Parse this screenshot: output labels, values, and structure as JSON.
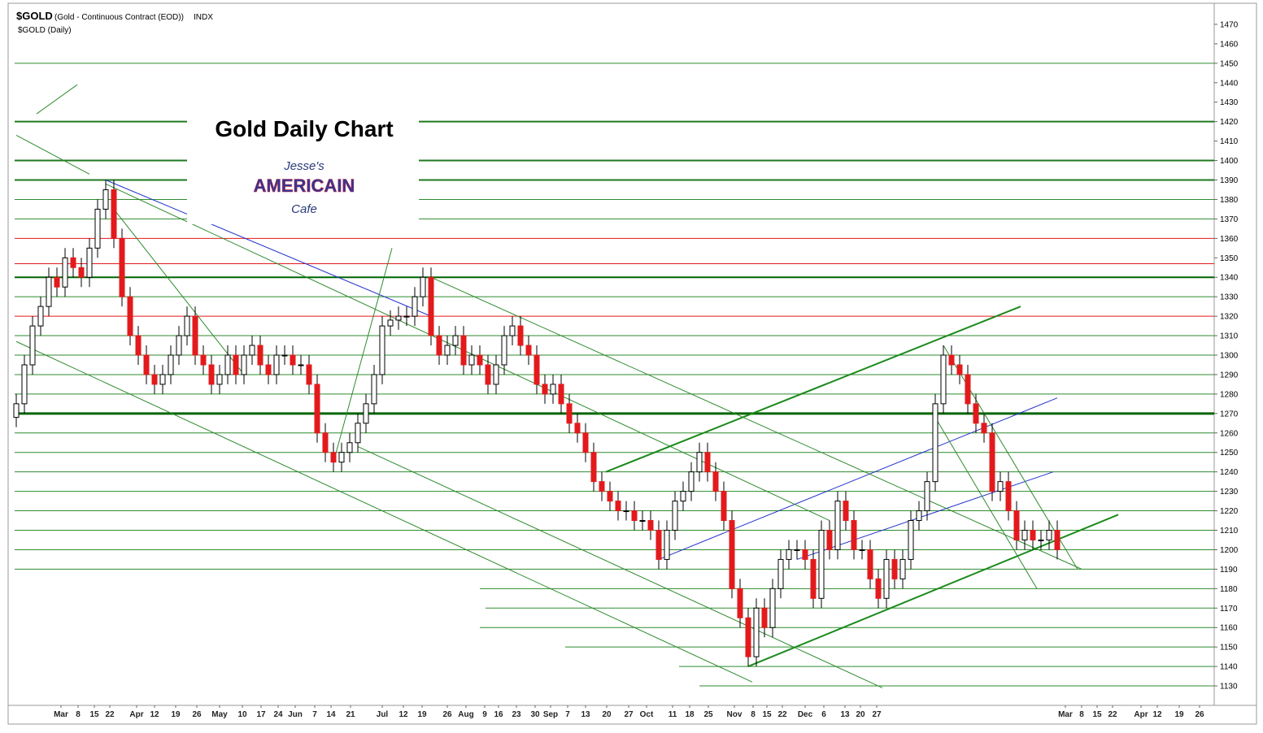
{
  "chart_data": {
    "type": "candlestick",
    "symbol": "$GOLD",
    "description": "(Gold - Continuous Contract (EOD))",
    "exchange": "INDX",
    "legend_label": "$GOLD (Daily)",
    "title": "Gold Daily Chart",
    "logo": [
      "Jesse's",
      "AMERICAIN",
      "Cafe"
    ],
    "up_color": "#ffffff",
    "down_color": "#e31a1c",
    "wick_color": "#000000",
    "xlim": [
      -0.2,
      147.3
    ],
    "ylim": [
      1120,
      1480
    ],
    "yticks": [
      1130,
      1140,
      1150,
      1160,
      1170,
      1180,
      1190,
      1200,
      1210,
      1220,
      1230,
      1240,
      1250,
      1260,
      1270,
      1280,
      1290,
      1300,
      1310,
      1320,
      1330,
      1340,
      1350,
      1360,
      1370,
      1380,
      1390,
      1400,
      1410,
      1420,
      1430,
      1440,
      1450,
      1460,
      1470
    ],
    "xticks": [
      {
        "value": 5.5,
        "label": "Mar"
      },
      {
        "value": 7.6,
        "label": "8"
      },
      {
        "value": 9.6,
        "label": "15"
      },
      {
        "value": 11.5,
        "label": "22"
      },
      {
        "value": 14.8,
        "label": "Apr"
      },
      {
        "value": 17,
        "label": "12"
      },
      {
        "value": 19.6,
        "label": "19"
      },
      {
        "value": 22.2,
        "label": "26"
      },
      {
        "value": 25,
        "label": "May"
      },
      {
        "value": 27.8,
        "label": "10"
      },
      {
        "value": 30.1,
        "label": "17"
      },
      {
        "value": 32.2,
        "label": "24"
      },
      {
        "value": 34.3,
        "label": "Jun"
      },
      {
        "value": 36.7,
        "label": "7"
      },
      {
        "value": 38.7,
        "label": "14"
      },
      {
        "value": 41.1,
        "label": "21"
      },
      {
        "value": 45,
        "label": "Jul"
      },
      {
        "value": 47.6,
        "label": "12"
      },
      {
        "value": 49.9,
        "label": "19"
      },
      {
        "value": 53,
        "label": "26"
      },
      {
        "value": 55.3,
        "label": "Aug"
      },
      {
        "value": 57.6,
        "label": "9"
      },
      {
        "value": 59.3,
        "label": "16"
      },
      {
        "value": 61.5,
        "label": "23"
      },
      {
        "value": 63.8,
        "label": "30"
      },
      {
        "value": 65.7,
        "label": "Sep"
      },
      {
        "value": 67.8,
        "label": "7"
      },
      {
        "value": 70,
        "label": "13"
      },
      {
        "value": 72.6,
        "label": "20"
      },
      {
        "value": 75.3,
        "label": "27"
      },
      {
        "value": 77.5,
        "label": "Oct"
      },
      {
        "value": 80.7,
        "label": "11"
      },
      {
        "value": 82.8,
        "label": "18"
      },
      {
        "value": 85.1,
        "label": "25"
      },
      {
        "value": 88.3,
        "label": "Nov"
      },
      {
        "value": 90.6,
        "label": "8"
      },
      {
        "value": 92.3,
        "label": "15"
      },
      {
        "value": 94.2,
        "label": "22"
      },
      {
        "value": 97,
        "label": "Dec"
      },
      {
        "value": 99.3,
        "label": "6"
      },
      {
        "value": 101.9,
        "label": "13"
      },
      {
        "value": 103.8,
        "label": "20"
      },
      {
        "value": 105.8,
        "label": "27"
      },
      {
        "value": 129,
        "label": "Mar"
      },
      {
        "value": 131,
        "label": "8"
      },
      {
        "value": 132.9,
        "label": "15"
      },
      {
        "value": 134.8,
        "label": "22"
      },
      {
        "value": 138.3,
        "label": "Apr"
      },
      {
        "value": 140.3,
        "label": "12"
      },
      {
        "value": 143,
        "label": "19"
      },
      {
        "value": 145.5,
        "label": "26"
      }
    ],
    "x": [
      0,
      1,
      2,
      3,
      4,
      5,
      6,
      7,
      8,
      9,
      10,
      11,
      12,
      13,
      14,
      15,
      16,
      17,
      18,
      19,
      20,
      21,
      22,
      23,
      24,
      25,
      26,
      27,
      28,
      29,
      30,
      31,
      32,
      33,
      34,
      35,
      36,
      37,
      38,
      39,
      40,
      41,
      42,
      43,
      44,
      45,
      46,
      47,
      48,
      49,
      50,
      51,
      52,
      53,
      54,
      55,
      56,
      57,
      58,
      59,
      60,
      61,
      62,
      63,
      64,
      65,
      66,
      67,
      68,
      69,
      70,
      71,
      72,
      73,
      74,
      75,
      76,
      77,
      78,
      79,
      80,
      81,
      82,
      83,
      84,
      85,
      86,
      87,
      88,
      89,
      90,
      91,
      92,
      93,
      94,
      95,
      96,
      97,
      98,
      99,
      100,
      101,
      102,
      103,
      104,
      105,
      106,
      107,
      108,
      109,
      110,
      111,
      112,
      113,
      114,
      115,
      116,
      117,
      118,
      119,
      120,
      121,
      122,
      123,
      124,
      125,
      126,
      127,
      128
    ],
    "open": [
      1268,
      1275,
      1295,
      1315,
      1325,
      1340,
      1335,
      1350,
      1345,
      1340,
      1355,
      1375,
      1385,
      1360,
      1330,
      1310,
      1300,
      1290,
      1285,
      1290,
      1300,
      1310,
      1320,
      1300,
      1295,
      1285,
      1290,
      1300,
      1290,
      1300,
      1305,
      1295,
      1290,
      1300,
      1300,
      1295,
      1295,
      1285,
      1260,
      1250,
      1245,
      1250,
      1255,
      1265,
      1275,
      1290,
      1315,
      1318,
      1320,
      1320,
      1330,
      1340,
      1310,
      1300,
      1305,
      1310,
      1295,
      1300,
      1295,
      1285,
      1295,
      1310,
      1315,
      1305,
      1300,
      1285,
      1280,
      1285,
      1275,
      1265,
      1260,
      1250,
      1235,
      1230,
      1225,
      1220,
      1220,
      1215,
      1215,
      1210,
      1195,
      1210,
      1225,
      1230,
      1240,
      1250,
      1240,
      1230,
      1215,
      1180,
      1165,
      1145,
      1170,
      1160,
      1180,
      1195,
      1200,
      1200,
      1195,
      1175,
      1210,
      1200,
      1225,
      1215,
      1200,
      1200,
      1185,
      1175,
      1195,
      1185,
      1195,
      1215,
      1220,
      1235,
      1275,
      1300,
      1295,
      1290,
      1275,
      1265,
      1260,
      1230,
      1235,
      1220,
      1205,
      1210,
      1205,
      1205,
      1210
    ],
    "high": [
      1280,
      1300,
      1320,
      1330,
      1345,
      1345,
      1355,
      1355,
      1350,
      1360,
      1380,
      1390,
      1390,
      1365,
      1335,
      1315,
      1305,
      1295,
      1295,
      1305,
      1315,
      1325,
      1325,
      1305,
      1300,
      1295,
      1305,
      1305,
      1305,
      1310,
      1310,
      1300,
      1305,
      1305,
      1305,
      1300,
      1300,
      1290,
      1265,
      1255,
      1255,
      1260,
      1270,
      1280,
      1295,
      1320,
      1323,
      1325,
      1325,
      1335,
      1345,
      1345,
      1315,
      1310,
      1315,
      1315,
      1305,
      1305,
      1300,
      1300,
      1315,
      1320,
      1320,
      1310,
      1305,
      1290,
      1290,
      1290,
      1280,
      1270,
      1265,
      1255,
      1240,
      1235,
      1230,
      1225,
      1225,
      1220,
      1220,
      1215,
      1215,
      1230,
      1235,
      1245,
      1255,
      1255,
      1245,
      1235,
      1220,
      1185,
      1170,
      1175,
      1175,
      1185,
      1200,
      1205,
      1205,
      1205,
      1200,
      1215,
      1215,
      1230,
      1230,
      1220,
      1205,
      1205,
      1190,
      1200,
      1200,
      1200,
      1220,
      1225,
      1240,
      1280,
      1305,
      1305,
      1300,
      1295,
      1280,
      1270,
      1265,
      1240,
      1240,
      1225,
      1215,
      1215,
      1210,
      1215,
      1215
    ],
    "low": [
      1263,
      1270,
      1290,
      1310,
      1320,
      1330,
      1330,
      1340,
      1335,
      1335,
      1350,
      1370,
      1355,
      1325,
      1305,
      1295,
      1285,
      1280,
      1280,
      1285,
      1295,
      1305,
      1295,
      1290,
      1280,
      1280,
      1285,
      1285,
      1285,
      1295,
      1290,
      1285,
      1285,
      1295,
      1290,
      1290,
      1280,
      1255,
      1245,
      1240,
      1240,
      1245,
      1250,
      1260,
      1270,
      1285,
      1310,
      1313,
      1315,
      1315,
      1325,
      1305,
      1295,
      1295,
      1300,
      1290,
      1290,
      1290,
      1280,
      1280,
      1290,
      1305,
      1300,
      1295,
      1280,
      1275,
      1275,
      1270,
      1260,
      1255,
      1245,
      1230,
      1225,
      1220,
      1215,
      1215,
      1210,
      1210,
      1205,
      1190,
      1190,
      1205,
      1220,
      1225,
      1235,
      1235,
      1225,
      1210,
      1175,
      1160,
      1140,
      1140,
      1155,
      1155,
      1175,
      1190,
      1195,
      1190,
      1170,
      1170,
      1195,
      1195,
      1210,
      1195,
      1195,
      1180,
      1170,
      1170,
      1180,
      1180,
      1190,
      1210,
      1215,
      1230,
      1270,
      1290,
      1285,
      1270,
      1260,
      1255,
      1225,
      1225,
      1215,
      1200,
      1200,
      1200,
      1200,
      1200,
      1195
    ],
    "close": [
      1275,
      1295,
      1315,
      1325,
      1340,
      1335,
      1350,
      1345,
      1340,
      1355,
      1375,
      1385,
      1360,
      1330,
      1310,
      1300,
      1290,
      1285,
      1290,
      1300,
      1310,
      1320,
      1300,
      1295,
      1285,
      1290,
      1300,
      1290,
      1300,
      1305,
      1295,
      1290,
      1300,
      1300,
      1295,
      1295,
      1285,
      1260,
      1250,
      1245,
      1250,
      1255,
      1265,
      1275,
      1290,
      1315,
      1318,
      1320,
      1320,
      1330,
      1340,
      1310,
      1300,
      1305,
      1310,
      1295,
      1300,
      1295,
      1285,
      1295,
      1310,
      1315,
      1305,
      1300,
      1285,
      1280,
      1285,
      1275,
      1265,
      1260,
      1250,
      1235,
      1230,
      1225,
      1220,
      1220,
      1215,
      1215,
      1210,
      1195,
      1210,
      1225,
      1230,
      1240,
      1250,
      1240,
      1230,
      1215,
      1180,
      1165,
      1145,
      1170,
      1160,
      1180,
      1195,
      1200,
      1200,
      1195,
      1175,
      1210,
      1200,
      1225,
      1215,
      1200,
      1200,
      1185,
      1175,
      1195,
      1185,
      1195,
      1215,
      1220,
      1235,
      1275,
      1300,
      1295,
      1290,
      1275,
      1265,
      1260,
      1230,
      1235,
      1220,
      1205,
      1210,
      1205,
      1205,
      1210,
      1200
    ],
    "hlines": [
      {
        "value": 1450,
        "color": "#2e8b2e",
        "width": 1
      },
      {
        "value": 1420,
        "color": "#1f7a1f",
        "width": 2
      },
      {
        "value": 1400,
        "color": "#1f7a1f",
        "width": 2
      },
      {
        "value": 1390,
        "color": "#1f7a1f",
        "width": 2
      },
      {
        "value": 1380,
        "color": "#2e8b2e",
        "width": 1
      },
      {
        "value": 1370,
        "color": "#2e8b2e",
        "width": 1
      },
      {
        "value": 1360,
        "color": "#e31a1c",
        "width": 1
      },
      {
        "value": 1347,
        "color": "#e31a1c",
        "width": 1
      },
      {
        "value": 1340,
        "color": "#006400",
        "width": 2
      },
      {
        "value": 1330,
        "color": "#2e8b2e",
        "width": 1
      },
      {
        "value": 1320,
        "color": "#e31a1c",
        "width": 1
      },
      {
        "value": 1310,
        "color": "#2e8b2e",
        "width": 1
      },
      {
        "value": 1300,
        "color": "#2e8b2e",
        "width": 1
      },
      {
        "value": 1290,
        "color": "#2e8b2e",
        "width": 1
      },
      {
        "value": 1280,
        "color": "#2e8b2e",
        "width": 1
      },
      {
        "value": 1270,
        "color": "#006400",
        "width": 3
      },
      {
        "value": 1260,
        "color": "#2e8b2e",
        "width": 1
      },
      {
        "value": 1250,
        "color": "#2e8b2e",
        "width": 1
      },
      {
        "value": 1240,
        "color": "#2e8b2e",
        "width": 1
      },
      {
        "value": 1230,
        "color": "#2e8b2e",
        "width": 1
      },
      {
        "value": 1220,
        "color": "#2e8b2e",
        "width": 1
      },
      {
        "value": 1210,
        "color": "#2e8b2e",
        "width": 1
      },
      {
        "value": 1200,
        "color": "#2e8b2e",
        "width": 1
      },
      {
        "value": 1190,
        "color": "#2e8b2e",
        "width": 1
      },
      {
        "value": 1180,
        "color": "#2e8b2e",
        "width": 1,
        "from": 57
      },
      {
        "value": 1170,
        "color": "#2e8b2e",
        "width": 1,
        "from": 57.7
      },
      {
        "value": 1160,
        "color": "#2e8b2e",
        "width": 1,
        "from": 57
      },
      {
        "value": 1150,
        "color": "#2e8b2e",
        "width": 1,
        "from": 67.5
      },
      {
        "value": 1140,
        "color": "#2e8b2e",
        "width": 1,
        "from": 81.5
      },
      {
        "value": 1130,
        "color": "#2e8b2e",
        "width": 1,
        "from": 84
      }
    ],
    "trendlines": [
      {
        "x": [
          72.5,
          123.5
        ],
        "y": [
          1240,
          1325
        ],
        "color": "#1a8a1a",
        "width": 2
      },
      {
        "x": [
          90,
          135.5
        ],
        "y": [
          1140,
          1218
        ],
        "color": "#1a8a1a",
        "width": 2
      },
      {
        "x": [
          79,
          128
        ],
        "y": [
          1195,
          1278
        ],
        "color": "#2233cc",
        "width": 1
      },
      {
        "x": [
          96,
          127.5
        ],
        "y": [
          1195,
          1240
        ],
        "color": "#2233cc",
        "width": 1
      },
      {
        "x": [
          11,
          51
        ],
        "y": [
          1390,
          1320
        ],
        "color": "#2233cc",
        "width": 1
      },
      {
        "x": [
          11,
          100
        ],
        "y": [
          1388,
          1215
        ],
        "color": "#2e8b2e",
        "width": 1
      },
      {
        "x": [
          0,
          90.5
        ],
        "y": [
          1307,
          1132
        ],
        "color": "#2e8b2e",
        "width": 1
      },
      {
        "x": [
          51,
          131
        ],
        "y": [
          1340,
          1190
        ],
        "color": "#2e8b2e",
        "width": 1
      },
      {
        "x": [
          42,
          106.5
        ],
        "y": [
          1253,
          1129
        ],
        "color": "#2e8b2e",
        "width": 1
      },
      {
        "x": [
          114,
          130.5
        ],
        "y": [
          1305,
          1190
        ],
        "color": "#2e8b2e",
        "width": 1
      },
      {
        "x": [
          113,
          125.5
        ],
        "y": [
          1268,
          1180
        ],
        "color": "#2e8b2e",
        "width": 1
      },
      {
        "x": [
          2.5,
          7.5
        ],
        "y": [
          1424,
          1439
        ],
        "color": "#2e8b2e",
        "width": 1
      },
      {
        "x": [
          39,
          46.2
        ],
        "y": [
          1245,
          1355
        ],
        "color": "#2e8b2e",
        "width": 1
      },
      {
        "x": [
          0,
          9
        ],
        "y": [
          1413,
          1393
        ],
        "color": "#2e8b2e",
        "width": 1
      },
      {
        "x": [
          12,
          28
        ],
        "y": [
          1375,
          1290
        ],
        "color": "#2e8b2e",
        "width": 1
      }
    ]
  }
}
